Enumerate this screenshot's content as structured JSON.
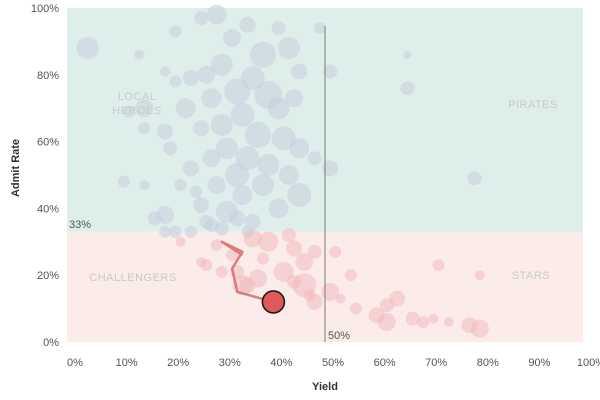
{
  "chart_data": {
    "type": "scatter",
    "xlabel": "Yield",
    "ylabel": "Admit Rate",
    "xlim": [
      0,
      100
    ],
    "ylim": [
      0,
      100
    ],
    "x_ticks": [
      "0%",
      "10%",
      "20%",
      "30%",
      "40%",
      "50%",
      "60%",
      "70%",
      "80%",
      "90%",
      "100%"
    ],
    "y_ticks": [
      "0%",
      "20%",
      "40%",
      "60%",
      "80%",
      "100%"
    ],
    "grid": false,
    "reference_lines": {
      "x": {
        "value": 50,
        "label": "50%"
      },
      "y": {
        "value": 33,
        "label": "33%"
      }
    },
    "quadrants": [
      {
        "label": "LOCAL HEROES",
        "position": "top-left",
        "color": "#deefeb"
      },
      {
        "label": "PIRATES",
        "position": "top-right",
        "color": "#deefeb"
      },
      {
        "label": "CHALLENGERS",
        "position": "bottom-left",
        "color": "#fbecea"
      },
      {
        "label": "STARS",
        "position": "bottom-right",
        "color": "#fbecea"
      }
    ],
    "colors": {
      "upper_points": "#c9cede",
      "lower_points": "#f0b8b8",
      "highlight": "#e05a5a",
      "trail": "#d66a6a"
    },
    "highlight_point": {
      "x": 40,
      "y": 12
    },
    "trail": [
      [
        40,
        12
      ],
      [
        33,
        15
      ],
      [
        32,
        22
      ],
      [
        34,
        27
      ],
      [
        30,
        30
      ],
      [
        34,
        26
      ]
    ],
    "points": [
      [
        4,
        88,
        11
      ],
      [
        29,
        98,
        10
      ],
      [
        26,
        97,
        7
      ],
      [
        35,
        95,
        8
      ],
      [
        41,
        94,
        7
      ],
      [
        49,
        94,
        6
      ],
      [
        21,
        93,
        6
      ],
      [
        32,
        91,
        9
      ],
      [
        43,
        88,
        11
      ],
      [
        38,
        86,
        13
      ],
      [
        30,
        83,
        11
      ],
      [
        27,
        80,
        9
      ],
      [
        36,
        79,
        12
      ],
      [
        45,
        81,
        8
      ],
      [
        51,
        81,
        7
      ],
      [
        24,
        79,
        8
      ],
      [
        21,
        78,
        6
      ],
      [
        33,
        75,
        13
      ],
      [
        39,
        74,
        14
      ],
      [
        28,
        73,
        10
      ],
      [
        44,
        73,
        9
      ],
      [
        41,
        70,
        11
      ],
      [
        23,
        70,
        10
      ],
      [
        34,
        68,
        12
      ],
      [
        30,
        65,
        11
      ],
      [
        26,
        64,
        8
      ],
      [
        37,
        62,
        13
      ],
      [
        42,
        61,
        12
      ],
      [
        45,
        58,
        10
      ],
      [
        31,
        58,
        11
      ],
      [
        20,
        58,
        7
      ],
      [
        35,
        55,
        12
      ],
      [
        28,
        55,
        9
      ],
      [
        39,
        53,
        11
      ],
      [
        48,
        55,
        7
      ],
      [
        24,
        52,
        8
      ],
      [
        33,
        50,
        12
      ],
      [
        43,
        50,
        10
      ],
      [
        51,
        52,
        8
      ],
      [
        38,
        47,
        11
      ],
      [
        29,
        47,
        9
      ],
      [
        22,
        47,
        6
      ],
      [
        34,
        44,
        10
      ],
      [
        45,
        44,
        12
      ],
      [
        26,
        41,
        8
      ],
      [
        41,
        40,
        10
      ],
      [
        31,
        39,
        11
      ],
      [
        19,
        38,
        9
      ],
      [
        36,
        36,
        8
      ],
      [
        28,
        35,
        7
      ],
      [
        35,
        33,
        6
      ],
      [
        43,
        32,
        7
      ],
      [
        21,
        33,
        6
      ],
      [
        39,
        30,
        10
      ],
      [
        44,
        28,
        8
      ],
      [
        48,
        27,
        7
      ],
      [
        52,
        27,
        6
      ],
      [
        46,
        24,
        9
      ],
      [
        42,
        21,
        10
      ],
      [
        37,
        19,
        9
      ],
      [
        34,
        17,
        10
      ],
      [
        46,
        17,
        12
      ],
      [
        51,
        15,
        9
      ],
      [
        48,
        12,
        8
      ],
      [
        66,
        76,
        7
      ],
      [
        14,
        86,
        5
      ],
      [
        19,
        81,
        5
      ],
      [
        15,
        70,
        9
      ],
      [
        15,
        64,
        6
      ],
      [
        12,
        69,
        6
      ],
      [
        19,
        63,
        8
      ],
      [
        11,
        48,
        6
      ],
      [
        15,
        47,
        5
      ],
      [
        25,
        45,
        6
      ],
      [
        27,
        36,
        7
      ],
      [
        24,
        33,
        6
      ],
      [
        17,
        37,
        7
      ],
      [
        19,
        33,
        6
      ],
      [
        30,
        34,
        7
      ],
      [
        33,
        37,
        8
      ],
      [
        36,
        31,
        9
      ],
      [
        29,
        29,
        6
      ],
      [
        32,
        26,
        6
      ],
      [
        27,
        23,
        6
      ],
      [
        30,
        21,
        6
      ],
      [
        33,
        21,
        7
      ],
      [
        35,
        17,
        8
      ],
      [
        26,
        24,
        5
      ],
      [
        22,
        30,
        5
      ],
      [
        38,
        25,
        6
      ],
      [
        44,
        18,
        7
      ],
      [
        47,
        14,
        6
      ],
      [
        53,
        13,
        5
      ],
      [
        55,
        20,
        6
      ],
      [
        56,
        10,
        6
      ],
      [
        60,
        8,
        8
      ],
      [
        62,
        6,
        9
      ],
      [
        62,
        11,
        7
      ],
      [
        64,
        13,
        8
      ],
      [
        67,
        7,
        7
      ],
      [
        69,
        6,
        6
      ],
      [
        71,
        7,
        5
      ],
      [
        74,
        6,
        5
      ],
      [
        78,
        5,
        8
      ],
      [
        80,
        4,
        9
      ],
      [
        79,
        49,
        7
      ],
      [
        66,
        86,
        4
      ],
      [
        72,
        23,
        6
      ],
      [
        80,
        20,
        5
      ]
    ]
  }
}
